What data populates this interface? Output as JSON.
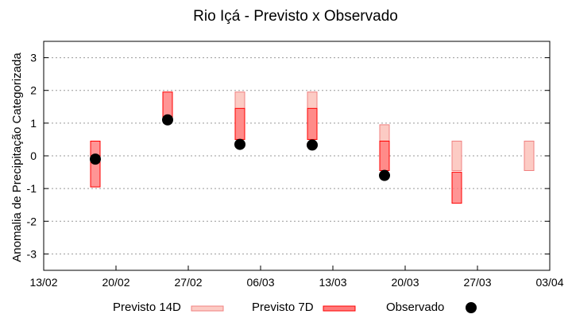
{
  "chart_data": {
    "type": "bar",
    "title": "Rio Içá - Previsto x Observado",
    "xlabel": "",
    "ylabel": "Anomalia de Precipitação Categorizada",
    "ylim": [
      -3.5,
      3.5
    ],
    "yticks": [
      3,
      2,
      1,
      0,
      -1,
      -2,
      -3
    ],
    "xticks": [
      "13/02",
      "20/02",
      "27/02",
      "06/03",
      "13/03",
      "20/03",
      "27/03",
      "03/04"
    ],
    "xlim": [
      "13/02",
      "03/04"
    ],
    "grid": true,
    "legend_placement": "bottom",
    "colors": {
      "previsto_14d_fill": "#fccbc4",
      "previsto_14d_stroke": "#f08080",
      "previsto_7d_fill": "#ff7b7b",
      "previsto_7d_stroke": "#ff0000",
      "observado": "#000000"
    },
    "series": [
      {
        "name": "Previsto 14D",
        "kind": "range",
        "points": [
          {
            "x": "04/03",
            "low": 0.5,
            "high": 1.95
          },
          {
            "x": "11/03",
            "low": 0.5,
            "high": 1.95
          },
          {
            "x": "18/03",
            "low": -0.45,
            "high": 0.95
          },
          {
            "x": "25/03",
            "low": -0.45,
            "high": 0.45
          },
          {
            "x": "01/04",
            "low": -0.45,
            "high": 0.45
          }
        ]
      },
      {
        "name": "Previsto 7D",
        "kind": "range",
        "points": [
          {
            "x": "18/02",
            "low": -0.95,
            "high": 0.45
          },
          {
            "x": "25/02",
            "low": 1.15,
            "high": 1.95
          },
          {
            "x": "04/03",
            "low": 0.5,
            "high": 1.45
          },
          {
            "x": "11/03",
            "low": 0.5,
            "high": 1.45
          },
          {
            "x": "18/03",
            "low": -0.45,
            "high": 0.45
          },
          {
            "x": "25/03",
            "low": -1.45,
            "high": -0.5
          }
        ]
      },
      {
        "name": "Observado",
        "kind": "point",
        "points": [
          {
            "x": "18/02",
            "y": -0.1
          },
          {
            "x": "25/02",
            "y": 1.1
          },
          {
            "x": "04/03",
            "y": 0.35
          },
          {
            "x": "11/03",
            "y": 0.33
          },
          {
            "x": "18/03",
            "y": -0.6
          }
        ]
      }
    ]
  }
}
